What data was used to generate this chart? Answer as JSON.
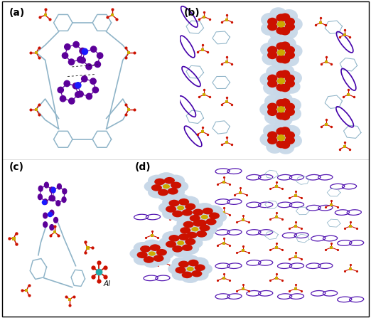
{
  "figure_width": 5.22,
  "figure_height": 4.47,
  "dpi": 100,
  "background_color": "#ffffff",
  "border_color": "#000000",
  "panel_labels": [
    "(a)",
    "(b)",
    "(c)",
    "(d)"
  ],
  "label_fontsize": 10,
  "label_fontweight": "bold",
  "colors": {
    "purple_ball": "#5c0099",
    "blue_n": "#1a1aff",
    "light_blue_stick": "#8fb4c8",
    "red_o": "#cc1100",
    "yellow_s": "#ccaa00",
    "orange_p": "#dd6600",
    "white_sphere": "#c8d8e8",
    "dark_red_sphere": "#cc1100",
    "cyan_al": "#22aaaa",
    "purple_ring": "#4400aa",
    "bg": "#ffffff"
  }
}
